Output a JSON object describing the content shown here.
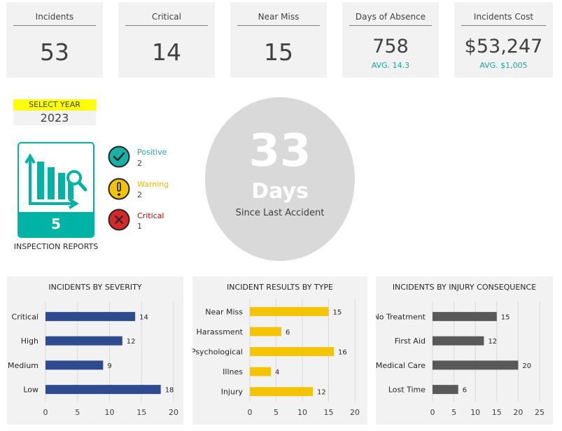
{
  "kpis": {
    "incidents": {
      "title": "Incidents",
      "value": "53"
    },
    "critical": {
      "title": "Critical",
      "value": "14"
    },
    "near_miss": {
      "title": "Near Miss",
      "value": "15"
    },
    "absence": {
      "title": "Days of Absence",
      "value": "758",
      "sub": "AVG. 14.3"
    },
    "cost": {
      "title": "Incidents Cost",
      "value": "$53,247",
      "sub": "AVG. $1,005"
    }
  },
  "year": {
    "label": "SELECT YEAR",
    "value": "2023"
  },
  "inspection": {
    "count": "5",
    "label": "INSPECTION REPORTS"
  },
  "status": {
    "positive": {
      "name": "Positive",
      "count": "2"
    },
    "warning": {
      "name": "Warning",
      "count": "2"
    },
    "critical": {
      "name": "Critical",
      "count": "1"
    }
  },
  "days_since": {
    "number": "33",
    "unit": "Days",
    "caption": "Since Last Accident"
  },
  "colors": {
    "teal": "#00b3a4",
    "accent_text": "#1aa99c",
    "blue": "#2e4b8f",
    "yellow": "#f5c400",
    "gray": "#595959",
    "red": "#d9262a"
  },
  "chart_data": [
    {
      "type": "bar",
      "orientation": "horizontal",
      "title": "INCIDENTS BY SEVERITY",
      "categories": [
        "Critical",
        "High",
        "Medium",
        "Low"
      ],
      "values": [
        14,
        12,
        9,
        18
      ],
      "xlim": [
        0,
        20
      ],
      "xticks": [
        0,
        5,
        10,
        15,
        20
      ],
      "color": "#2e4b8f",
      "grid": true
    },
    {
      "type": "bar",
      "orientation": "horizontal",
      "title": "INCIDENT RESULTS BY TYPE",
      "categories": [
        "Near Miss",
        "Harassment",
        "Psychological",
        "Illnes",
        "Injury"
      ],
      "values": [
        15,
        6,
        16,
        4,
        12
      ],
      "xlim": [
        0,
        20
      ],
      "xticks": [
        0,
        5,
        10,
        15,
        20
      ],
      "color": "#f5c400",
      "grid": true
    },
    {
      "type": "bar",
      "orientation": "horizontal",
      "title": "INCIDENTS BY INJURY CONSEQUENCE",
      "categories": [
        "No Treatment",
        "First Aid",
        "Medical Care",
        "Lost Time"
      ],
      "values": [
        15,
        12,
        20,
        6
      ],
      "xlim": [
        0,
        25
      ],
      "xticks": [
        0,
        5,
        10,
        15,
        20,
        25
      ],
      "color": "#595959",
      "grid": true
    }
  ]
}
